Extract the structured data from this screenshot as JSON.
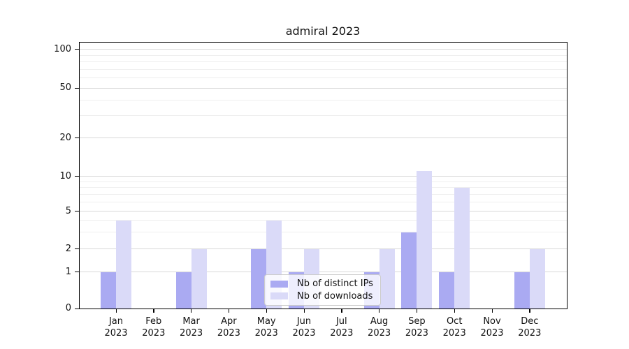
{
  "figure": {
    "title": "admiral 2023"
  },
  "chart_data": {
    "type": "bar",
    "title": "admiral 2023",
    "categories": [
      "Jan",
      "Feb",
      "Mar",
      "Apr",
      "May",
      "Jun",
      "Jul",
      "Aug",
      "Sep",
      "Oct",
      "Nov",
      "Dec"
    ],
    "year_label": "2023",
    "series": [
      {
        "name": "Nb of distinct IPs",
        "color": "#aaaaf2",
        "values": [
          1,
          0,
          1,
          0,
          2,
          1,
          0,
          1,
          3,
          1,
          0,
          1
        ]
      },
      {
        "name": "Nb of downloads",
        "color": "#dadaf8",
        "values": [
          4,
          0,
          2,
          0,
          4,
          2,
          0,
          2,
          11,
          8,
          0,
          2
        ]
      }
    ],
    "xlabel": "",
    "ylabel": "",
    "y_axis": {
      "scale": "symlog",
      "major_ticks": [
        0,
        1,
        2,
        5,
        10,
        20,
        50,
        100
      ],
      "minor_gridlines": [
        3,
        4,
        6,
        7,
        8,
        9,
        30,
        40,
        60,
        70,
        80,
        90
      ],
      "ylim": [
        0,
        115
      ]
    },
    "grid": true,
    "legend_position": "lower center",
    "colors": {
      "major_grid": "#d9d9d9",
      "minor_grid": "#efefef",
      "axis": "#000000"
    }
  }
}
